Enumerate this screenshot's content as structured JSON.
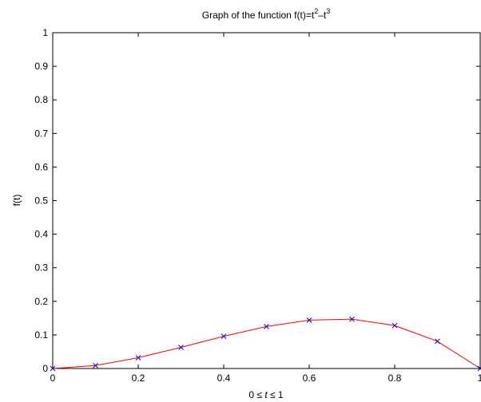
{
  "chart_data": {
    "type": "line",
    "title": {
      "prefix": "Graph of the function f(t)=t",
      "exp1": "2",
      "mid": "–t",
      "exp2": "3"
    },
    "xlabel": {
      "left": "0 ≤ ",
      "var": "t",
      "right": " ≤ 1"
    },
    "ylabel": "f(t)",
    "xlim": [
      0,
      1
    ],
    "ylim": [
      0,
      1
    ],
    "xticks": [
      0,
      0.2,
      0.4,
      0.6,
      0.8,
      1
    ],
    "xtick_labels": [
      "0",
      "0.2",
      "0.4",
      "0.6",
      "0.8",
      "1"
    ],
    "yticks": [
      0,
      0.1,
      0.2,
      0.3,
      0.4,
      0.5,
      0.6,
      0.7,
      0.8,
      0.9,
      1
    ],
    "ytick_labels": [
      "0",
      "0.1",
      "0.2",
      "0.3",
      "0.4",
      "0.5",
      "0.6",
      "0.7",
      "0.8",
      "0.9",
      "1"
    ],
    "grid": false,
    "series": [
      {
        "x": [
          0,
          0.1,
          0.2,
          0.3,
          0.4,
          0.5,
          0.6,
          0.7,
          0.8,
          0.9,
          1.0
        ],
        "y": [
          0,
          0.009,
          0.032,
          0.063,
          0.096,
          0.125,
          0.144,
          0.147,
          0.128,
          0.081,
          0
        ],
        "line_color": "#ff0000",
        "marker": "x",
        "marker_color": "#0000ff"
      }
    ]
  }
}
